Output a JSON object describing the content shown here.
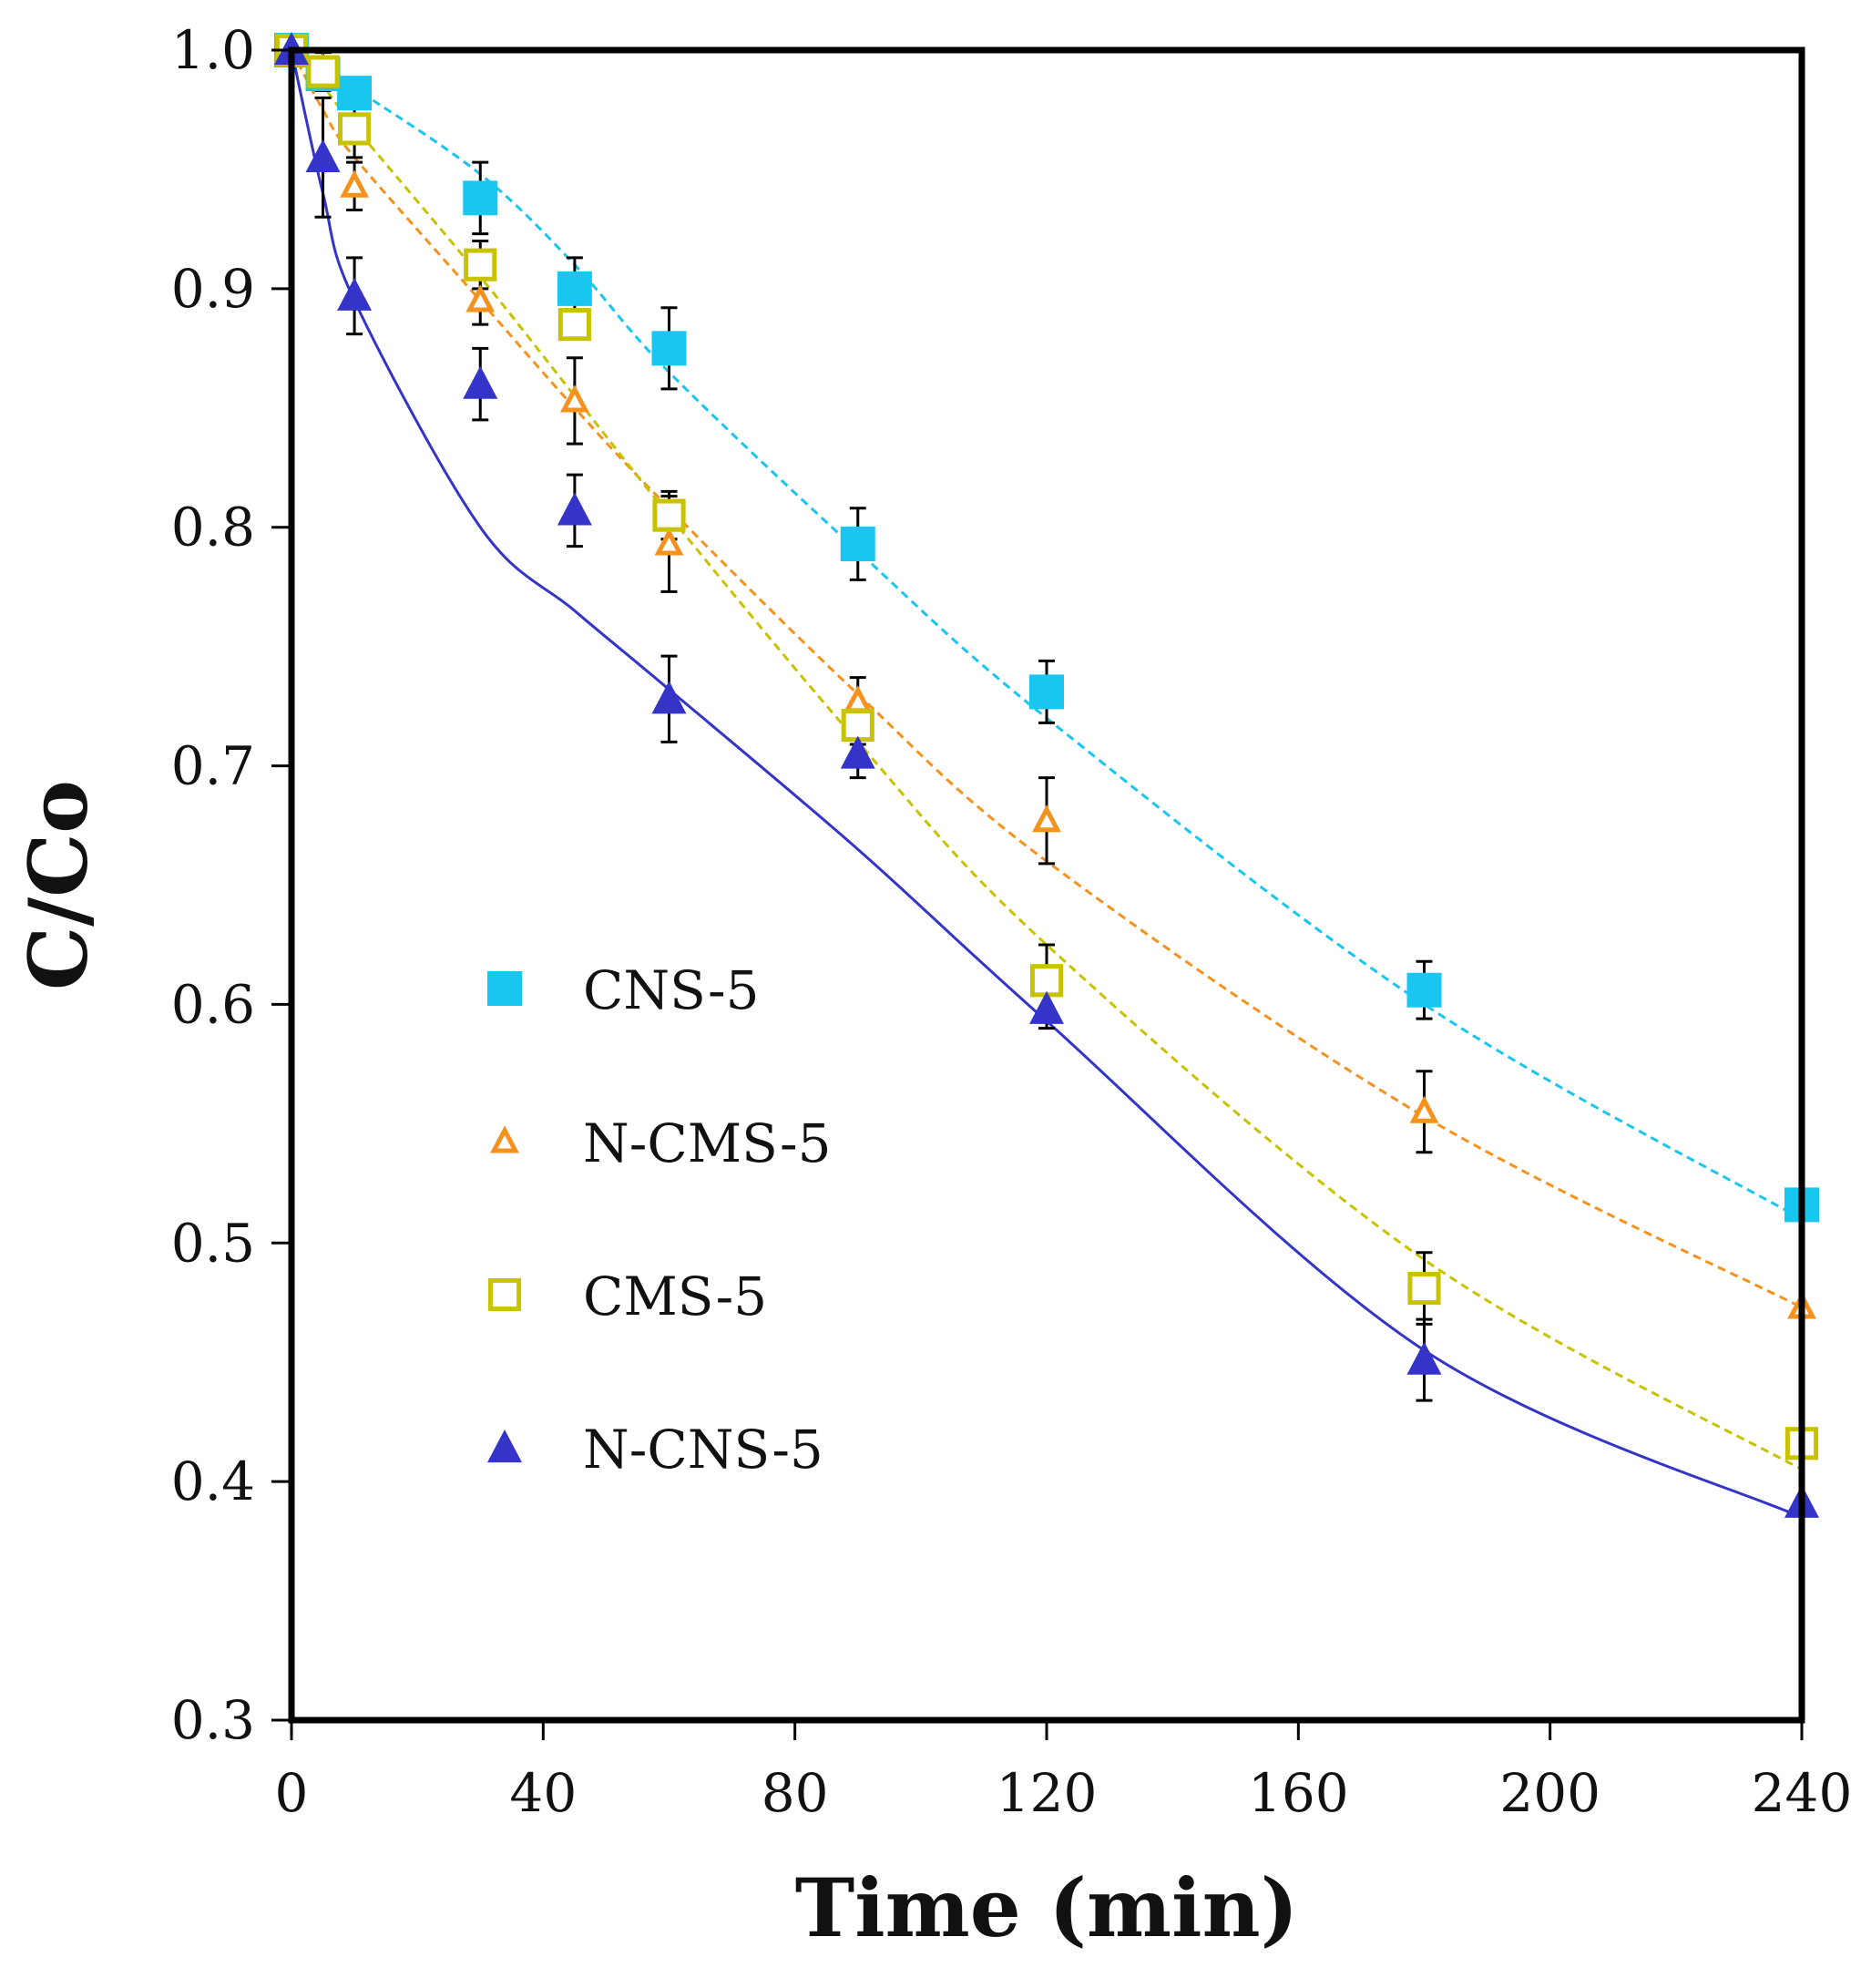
{
  "chart_data": {
    "type": "scatter",
    "xlabel": "Time (min)",
    "ylabel": "C/Co",
    "xlim": [
      0,
      240
    ],
    "ylim": [
      0.3,
      1.0
    ],
    "xticks": [
      0,
      40,
      80,
      120,
      160,
      200,
      240
    ],
    "yticks": [
      0.3,
      0.4,
      0.5,
      0.6,
      0.7,
      0.8,
      0.9,
      1.0
    ],
    "xtick_labels": [
      "0",
      "40",
      "80",
      "120",
      "160",
      "200",
      "240"
    ],
    "ytick_labels": [
      "0.3",
      "0.4",
      "0.5",
      "0.6",
      "0.7",
      "0.8",
      "0.9",
      "1.0"
    ],
    "grid": false,
    "legend_position": "left-center",
    "series": [
      {
        "name": "CNS-5",
        "marker": "filled-square",
        "color": "#18c6f0",
        "line_style": "dashed",
        "x": [
          0,
          5,
          10,
          30,
          45,
          60,
          90,
          120,
          180,
          240
        ],
        "y": [
          1.0,
          0.99,
          0.982,
          0.938,
          0.9,
          0.875,
          0.793,
          0.731,
          0.606,
          0.516
        ],
        "err": [
          0,
          0,
          0,
          0.015,
          0.013,
          0.017,
          0.015,
          0.013,
          0.012,
          0
        ],
        "fit_y": [
          1.0,
          0.992,
          0.984,
          0.948,
          0.91,
          0.865,
          0.79,
          0.72,
          0.6,
          0.51
        ]
      },
      {
        "name": "N-CMS-5",
        "marker": "open-triangle",
        "color": "#f5921e",
        "line_style": "dashed",
        "x": [
          0,
          5,
          10,
          30,
          45,
          60,
          90,
          120,
          180,
          240
        ],
        "y": [
          1.0,
          0.992,
          0.943,
          0.895,
          0.853,
          0.793,
          0.727,
          0.677,
          0.555,
          0.473
        ],
        "err": [
          0,
          0.008,
          0.01,
          0.01,
          0.018,
          0.02,
          0.01,
          0.018,
          0.017,
          0
        ],
        "fit_y": [
          1.0,
          0.975,
          0.955,
          0.895,
          0.85,
          0.808,
          0.73,
          0.66,
          0.553,
          0.473
        ]
      },
      {
        "name": "CMS-5",
        "marker": "open-square",
        "color": "#c8c200",
        "line_style": "dashed",
        "x": [
          0,
          5,
          10,
          30,
          45,
          60,
          90,
          120,
          180,
          240
        ],
        "y": [
          1.0,
          0.991,
          0.967,
          0.91,
          0.885,
          0.805,
          0.717,
          0.61,
          0.481,
          0.416
        ],
        "err": [
          0,
          0.008,
          0.012,
          0.01,
          0.005,
          0.01,
          0.008,
          0.015,
          0.015,
          0
        ],
        "fit_y": [
          1.0,
          0.985,
          0.968,
          0.905,
          0.855,
          0.805,
          0.71,
          0.625,
          0.493,
          0.405
        ]
      },
      {
        "name": "N-CNS-5",
        "marker": "filled-triangle",
        "color": "#3434c8",
        "line_style": "solid",
        "x": [
          0,
          5,
          10,
          30,
          45,
          60,
          90,
          120,
          180,
          240
        ],
        "y": [
          1.0,
          0.955,
          0.897,
          0.86,
          0.807,
          0.728,
          0.705,
          0.598,
          0.451,
          0.391
        ],
        "err": [
          0,
          0.025,
          0.016,
          0.015,
          0.015,
          0.018,
          0.01,
          0.008,
          0.017,
          0
        ],
        "fit_y": [
          1.0,
          0.94,
          0.895,
          0.8,
          0.765,
          0.732,
          0.665,
          0.593,
          0.455,
          0.385
        ]
      }
    ]
  }
}
